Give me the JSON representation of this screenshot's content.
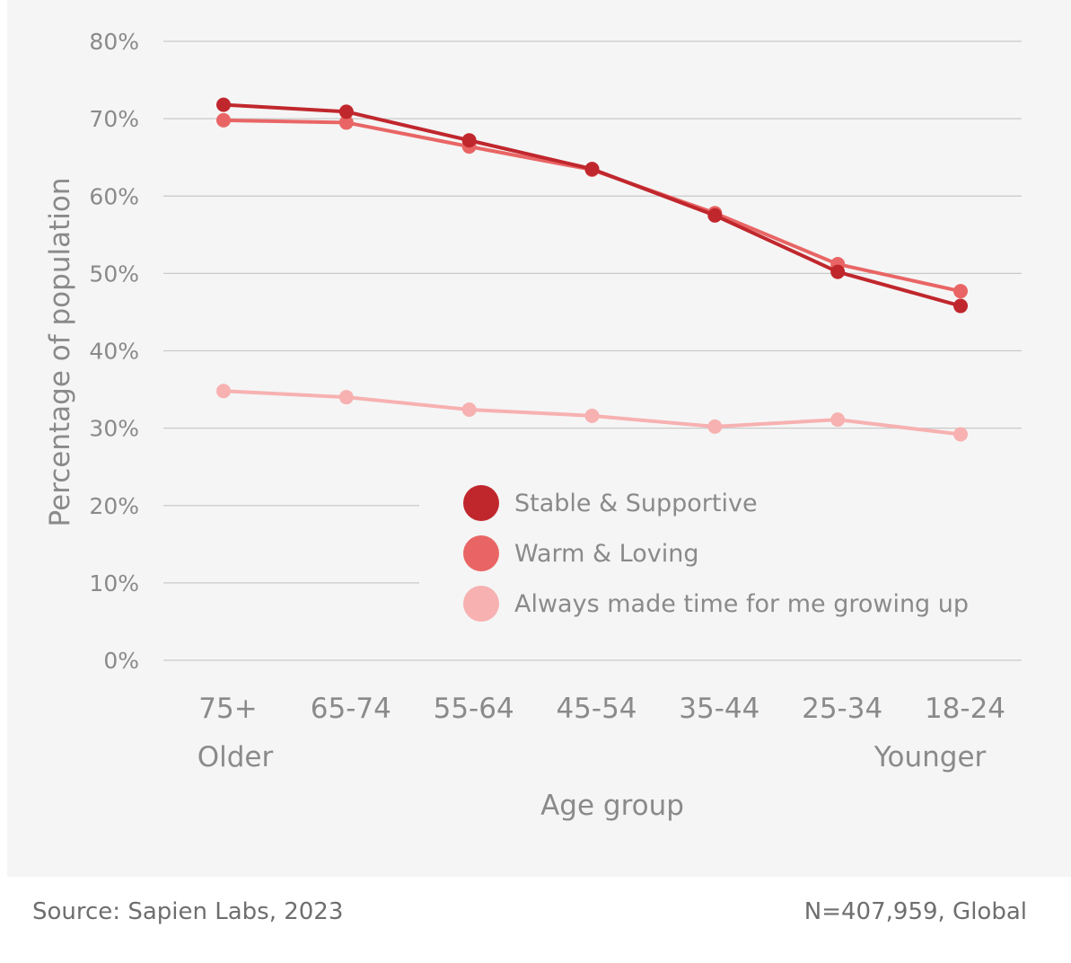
{
  "chart_data": {
    "type": "line",
    "xlabel": "Age group",
    "ylabel": "Percentage of population",
    "ylim": [
      0,
      80
    ],
    "y_ticks": [
      "0%",
      "10%",
      "20%",
      "30%",
      "40%",
      "50%",
      "60%",
      "70%",
      "80%"
    ],
    "categories": [
      "75+",
      "65-74",
      "55-64",
      "45-54",
      "35-44",
      "25-34",
      "18-24"
    ],
    "x_end_labels": {
      "left": "Older",
      "right": "Younger"
    },
    "grid": true,
    "legend_position": "center",
    "series": [
      {
        "name": "Stable & Supportive",
        "color": "#c0272d",
        "values": [
          71.8,
          70.9,
          67.2,
          63.5,
          57.5,
          50.2,
          45.8
        ]
      },
      {
        "name": "Warm & Loving",
        "color": "#e96565",
        "values": [
          69.8,
          69.5,
          66.4,
          63.4,
          57.8,
          51.2,
          47.7
        ]
      },
      {
        "name": "Always made time for me growing up",
        "color": "#f7b1b1",
        "values": [
          34.8,
          34.0,
          32.4,
          31.6,
          30.2,
          31.1,
          29.2
        ]
      }
    ]
  },
  "footer": {
    "source": "Source: Sapien Labs, 2023",
    "sample": "N=407,959, Global"
  }
}
